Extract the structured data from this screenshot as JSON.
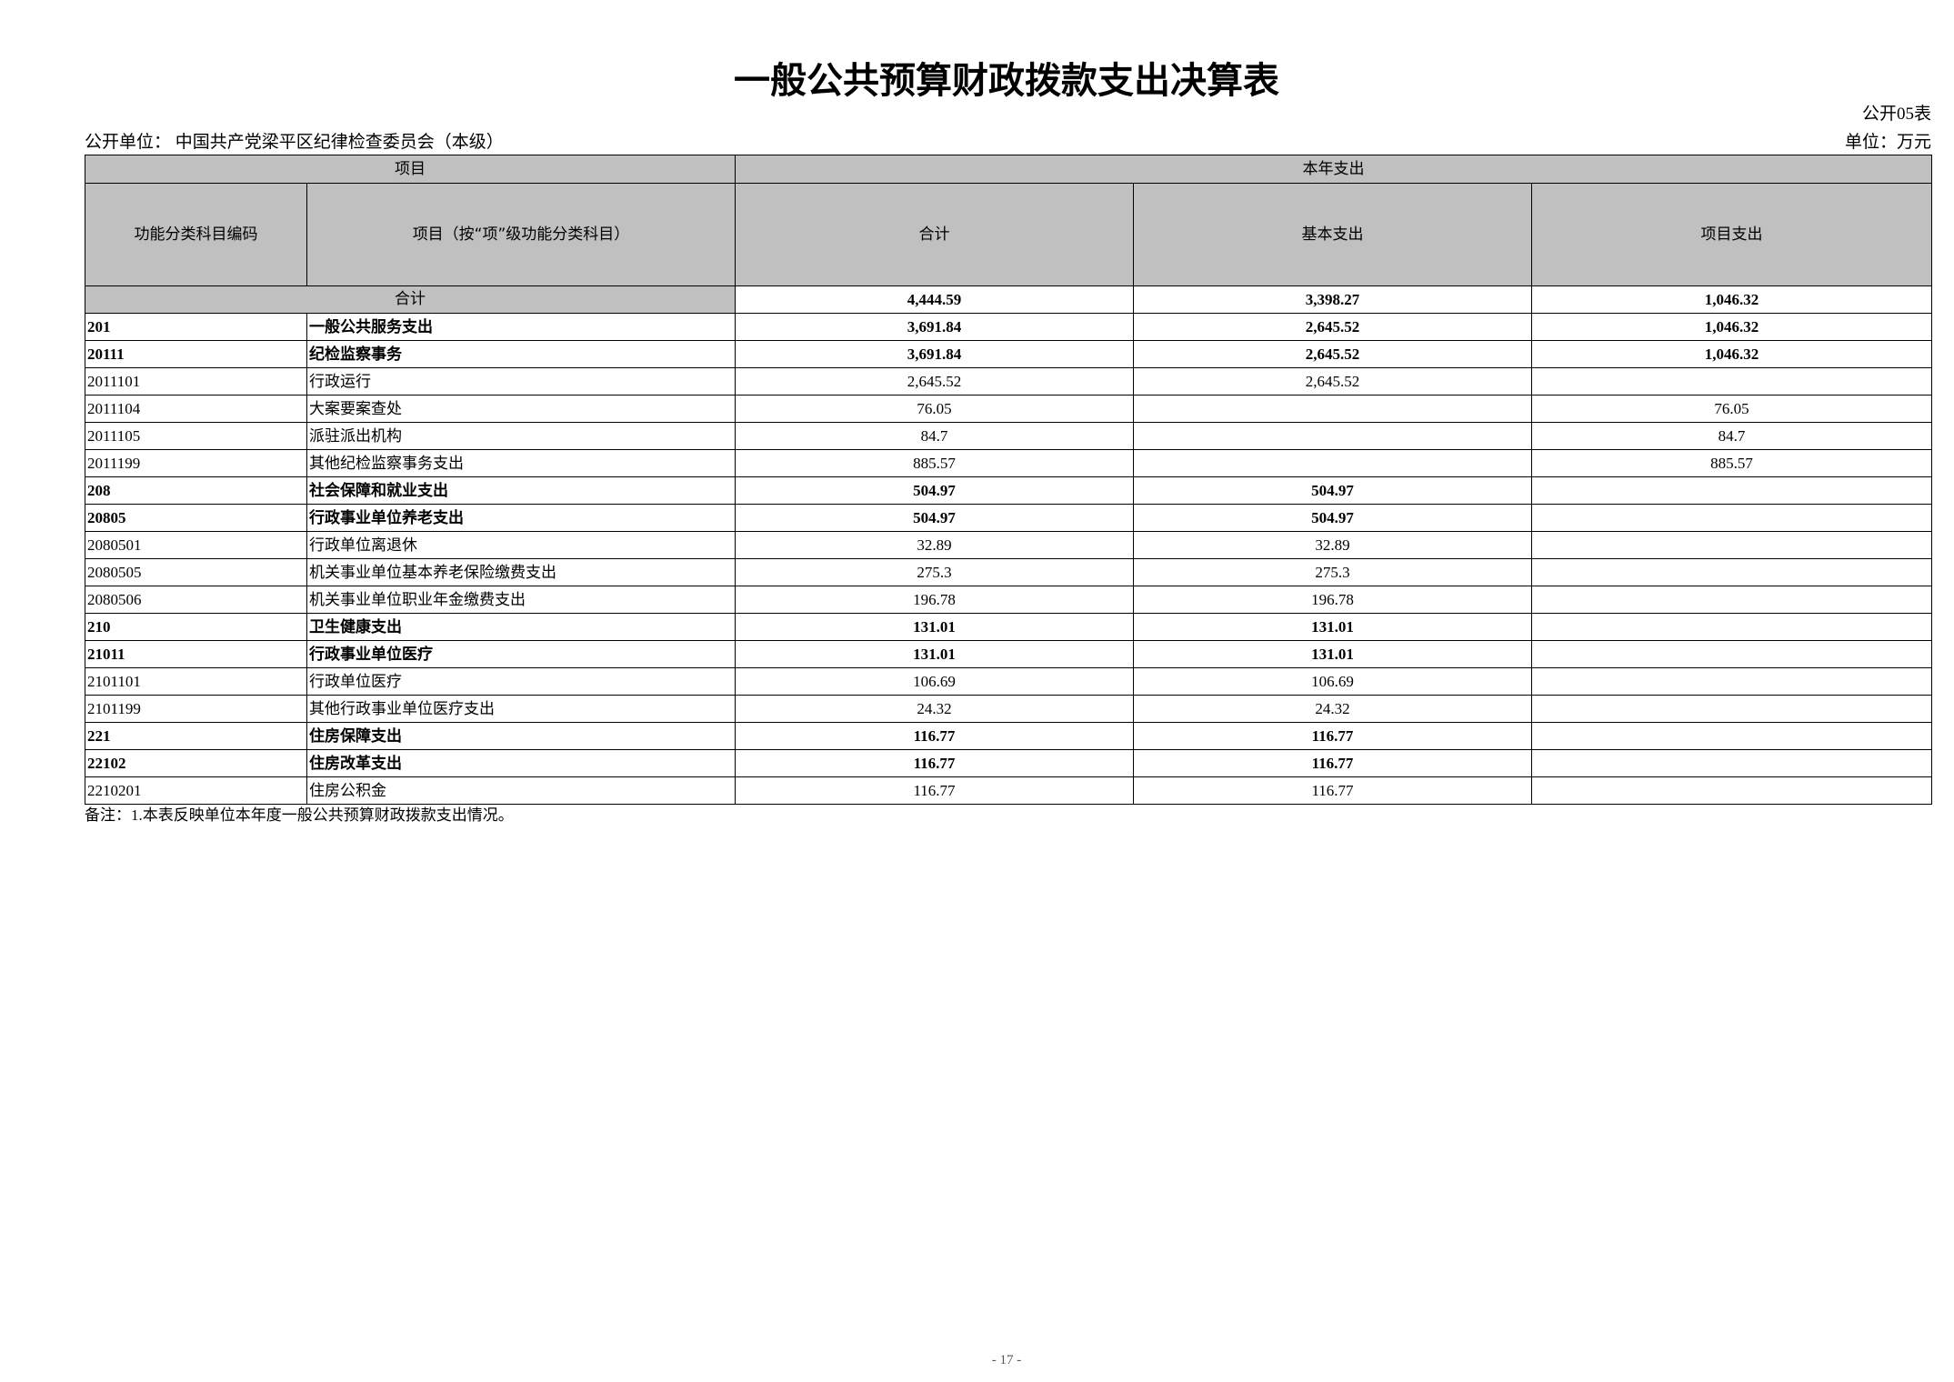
{
  "title": "一般公共预算财政拨款支出决算表",
  "table_no": "公开05表",
  "unit_label": "公开单位：  中国共产党梁平区纪律检查委员会（本级）",
  "currency_unit": "单位：万元",
  "header": {
    "group_item": "项目",
    "group_expense": "本年支出",
    "col_code": "功能分类科目编码",
    "col_name": "项目（按“项”级功能分类科目）",
    "col_total": "合计",
    "col_basic": "基本支出",
    "col_project": "项目支出"
  },
  "total_row": {
    "label": "合计",
    "total": "4,444.59",
    "basic": "3,398.27",
    "project": "1,046.32"
  },
  "rows": [
    {
      "code": "201",
      "name": "一般公共服务支出",
      "total": "3,691.84",
      "basic": "2,645.52",
      "project": "1,046.32",
      "bold": true
    },
    {
      "code": "20111",
      "name": "纪检监察事务",
      "total": "3,691.84",
      "basic": "2,645.52",
      "project": "1,046.32",
      "bold": true
    },
    {
      "code": "2011101",
      "name": "行政运行",
      "total": "2,645.52",
      "basic": "2,645.52",
      "project": "",
      "bold": false
    },
    {
      "code": "2011104",
      "name": "大案要案查处",
      "total": "76.05",
      "basic": "",
      "project": "76.05",
      "bold": false
    },
    {
      "code": "2011105",
      "name": "派驻派出机构",
      "total": "84.7",
      "basic": "",
      "project": "84.7",
      "bold": false
    },
    {
      "code": "2011199",
      "name": "其他纪检监察事务支出",
      "total": "885.57",
      "basic": "",
      "project": "885.57",
      "bold": false
    },
    {
      "code": "208",
      "name": "社会保障和就业支出",
      "total": "504.97",
      "basic": "504.97",
      "project": "",
      "bold": true
    },
    {
      "code": "20805",
      "name": "行政事业单位养老支出",
      "total": "504.97",
      "basic": "504.97",
      "project": "",
      "bold": true
    },
    {
      "code": "2080501",
      "name": "行政单位离退休",
      "total": "32.89",
      "basic": "32.89",
      "project": "",
      "bold": false
    },
    {
      "code": "2080505",
      "name": "机关事业单位基本养老保险缴费支出",
      "total": "275.3",
      "basic": "275.3",
      "project": "",
      "bold": false
    },
    {
      "code": "2080506",
      "name": "机关事业单位职业年金缴费支出",
      "total": "196.78",
      "basic": "196.78",
      "project": "",
      "bold": false
    },
    {
      "code": "210",
      "name": "卫生健康支出",
      "total": "131.01",
      "basic": "131.01",
      "project": "",
      "bold": true
    },
    {
      "code": "21011",
      "name": "行政事业单位医疗",
      "total": "131.01",
      "basic": "131.01",
      "project": "",
      "bold": true
    },
    {
      "code": "2101101",
      "name": "行政单位医疗",
      "total": "106.69",
      "basic": "106.69",
      "project": "",
      "bold": false
    },
    {
      "code": "2101199",
      "name": "其他行政事业单位医疗支出",
      "total": "24.32",
      "basic": "24.32",
      "project": "",
      "bold": false
    },
    {
      "code": "221",
      "name": "住房保障支出",
      "total": "116.77",
      "basic": "116.77",
      "project": "",
      "bold": true
    },
    {
      "code": "22102",
      "name": "住房改革支出",
      "total": "116.77",
      "basic": "116.77",
      "project": "",
      "bold": true
    },
    {
      "code": "2210201",
      "name": "住房公积金",
      "total": "116.77",
      "basic": "116.77",
      "project": "",
      "bold": false
    }
  ],
  "note": "备注：1.本表反映单位本年度一般公共预算财政拨款支出情况。",
  "page_number": "- 17 -"
}
